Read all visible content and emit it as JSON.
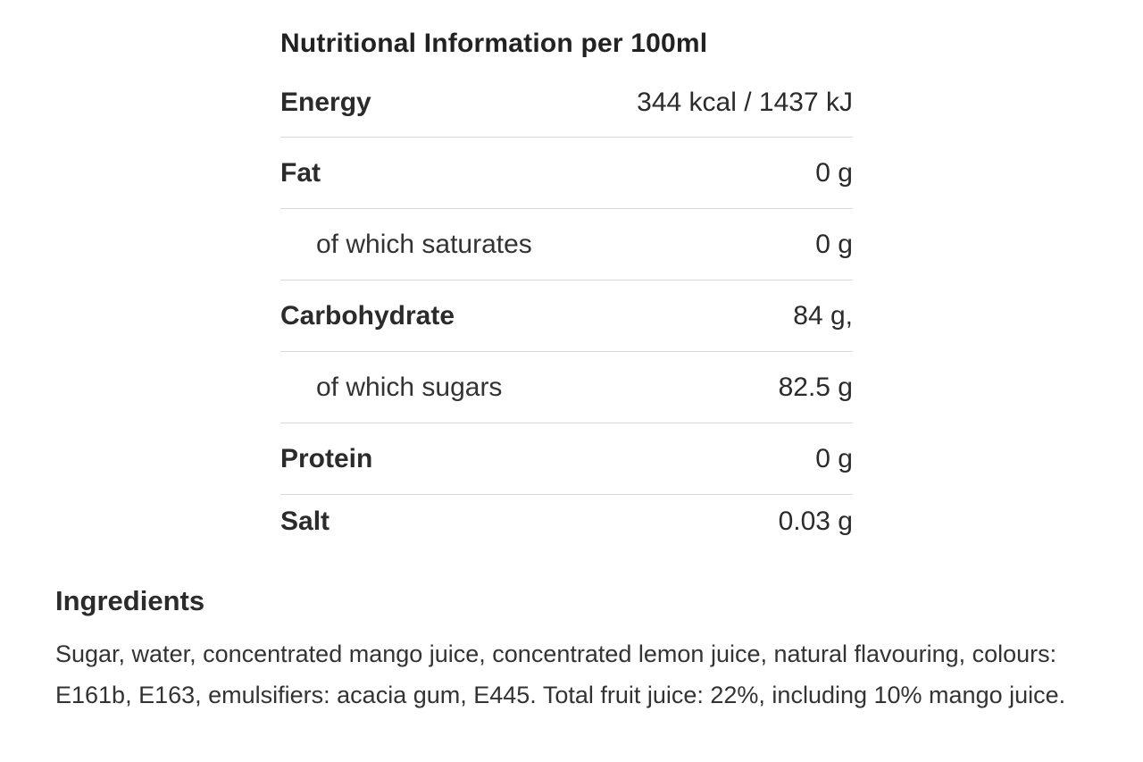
{
  "nutrition": {
    "title": "Nutritional Information per 100ml",
    "rows": [
      {
        "label": "Energy",
        "value": "344 kcal / 1437 kJ",
        "type": "main"
      },
      {
        "label": "Fat",
        "value": "0 g",
        "type": "main"
      },
      {
        "label": "of which saturates",
        "value": "0 g",
        "type": "sub"
      },
      {
        "label": "Carbohydrate",
        "value": "84 g,",
        "type": "main"
      },
      {
        "label": "of which sugars",
        "value": "82.5 g",
        "type": "sub"
      },
      {
        "label": "Protein",
        "value": "0 g",
        "type": "main"
      },
      {
        "label": "Salt",
        "value": "0.03 g",
        "type": "main"
      }
    ]
  },
  "ingredients": {
    "heading": "Ingredients",
    "text": "Sugar, water, concentrated mango juice, concentrated lemon juice, natural flavouring, colours: E161b, E163, emulsifiers: acacia gum, E445. Total fruit juice: 22%, including 10% mango juice."
  }
}
